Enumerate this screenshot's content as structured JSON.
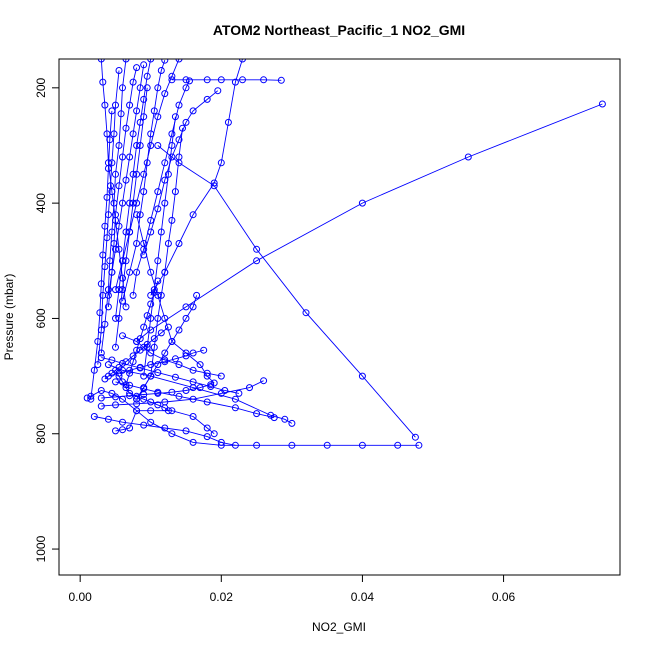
{
  "chart_data": {
    "type": "line",
    "title": "ATOM2 Northeast_Pacific_1 NO2_GMI",
    "xlabel": "NO2_GMI",
    "ylabel": "Pressure (mbar)",
    "xlim": [
      -0.003,
      0.0765
    ],
    "ylim": [
      1045,
      150
    ],
    "y_reversed": true,
    "x_ticks": [
      0.0,
      0.02,
      0.04,
      0.06
    ],
    "x_tick_labels": [
      "0.00",
      "0.02",
      "0.04",
      "0.06"
    ],
    "y_ticks": [
      200,
      400,
      600,
      800,
      1000
    ],
    "y_tick_labels": [
      "200",
      "400",
      "600",
      "800",
      "1000"
    ],
    "series_color": "#0000ff",
    "marker": "open-circle",
    "grid": false,
    "legend": "none",
    "series": [
      {
        "x": [
          0.048,
          0.045,
          0.04,
          0.035,
          0.03,
          0.025,
          0.02,
          0.016,
          0.013,
          0.01,
          0.008,
          0.006,
          0.0045,
          0.003,
          0.0015,
          0.001
        ],
        "y": [
          820,
          820,
          820,
          820,
          820,
          820,
          820,
          815,
          800,
          780,
          760,
          740,
          730,
          725,
          735,
          738
        ]
      },
      {
        "x": [
          0.074,
          0.055,
          0.04,
          0.025,
          0.015,
          0.01,
          0.008
        ],
        "y": [
          228,
          320,
          400,
          500,
          580,
          620,
          640
        ]
      },
      {
        "x": [
          0.0475,
          0.04,
          0.032,
          0.025,
          0.019,
          0.014,
          0.011
        ],
        "y": [
          806,
          700,
          590,
          480,
          370,
          330,
          300
        ]
      },
      {
        "x": [
          0.03,
          0.029,
          0.027,
          0.022,
          0.016,
          0.01,
          0.006,
          0.004
        ],
        "y": [
          782,
          775,
          768,
          740,
          720,
          700,
          690,
          680
        ]
      },
      {
        "x": [
          0.026,
          0.024,
          0.02,
          0.016,
          0.012,
          0.008,
          0.005,
          0.003
        ],
        "y": [
          708,
          720,
          730,
          740,
          745,
          748,
          750,
          752
        ]
      },
      {
        "x": [
          0.022,
          0.02,
          0.018,
          0.015,
          0.012,
          0.009,
          0.006,
          0.004,
          0.002
        ],
        "y": [
          820,
          815,
          805,
          795,
          790,
          785,
          780,
          775,
          770
        ]
      },
      {
        "x": [
          0.019,
          0.018,
          0.016,
          0.013,
          0.01,
          0.008,
          0.007,
          0.006,
          0.005
        ],
        "y": [
          800,
          790,
          770,
          760,
          760,
          760,
          790,
          793,
          795
        ]
      },
      {
        "x": [
          0.019,
          0.018,
          0.017,
          0.015,
          0.013,
          0.012,
          0.011,
          0.01,
          0.009,
          0.008
        ],
        "y": [
          712,
          700,
          680,
          660,
          640,
          600,
          560,
          520,
          470,
          420
        ]
      },
      {
        "x": [
          0.02,
          0.018,
          0.016,
          0.014,
          0.012,
          0.01,
          0.009,
          0.008,
          0.006
        ],
        "y": [
          700,
          695,
          690,
          680,
          672,
          660,
          650,
          640,
          630
        ]
      },
      {
        "x": [
          0.0285,
          0.026,
          0.023,
          0.02,
          0.018,
          0.015,
          0.013
        ],
        "y": [
          187,
          186,
          186,
          186,
          186,
          186,
          186
        ]
      },
      {
        "x": [
          0.023,
          0.022,
          0.021,
          0.02,
          0.019,
          0.016,
          0.014,
          0.012,
          0.01
        ],
        "y": [
          150,
          190,
          260,
          330,
          365,
          420,
          470,
          520,
          560
        ]
      },
      {
        "x": [
          0.0195,
          0.018,
          0.016,
          0.015,
          0.014,
          0.013,
          0.012,
          0.011,
          0.01,
          0.009
        ],
        "y": [
          205,
          220,
          240,
          260,
          290,
          320,
          360,
          410,
          450,
          490
        ]
      },
      {
        "x": [
          0.014,
          0.013,
          0.012,
          0.011,
          0.01,
          0.009,
          0.008,
          0.007,
          0.006,
          0.005
        ],
        "y": [
          150,
          180,
          210,
          250,
          300,
          350,
          400,
          450,
          500,
          550
        ]
      },
      {
        "x": [
          0.0155,
          0.015,
          0.014,
          0.013,
          0.012,
          0.011,
          0.01,
          0.009,
          0.008,
          0.0075
        ],
        "y": [
          188,
          200,
          230,
          280,
          330,
          380,
          430,
          480,
          520,
          560
        ]
      },
      {
        "x": [
          0.012,
          0.0115,
          0.011,
          0.0105,
          0.01,
          0.0095,
          0.009,
          0.0085,
          0.008,
          0.007,
          0.006
        ],
        "y": [
          152,
          170,
          200,
          240,
          280,
          330,
          380,
          420,
          470,
          520,
          570
        ]
      },
      {
        "x": [
          0.01,
          0.0095,
          0.009,
          0.0085,
          0.008,
          0.0075,
          0.007,
          0.0065,
          0.006,
          0.0055,
          0.005
        ],
        "y": [
          150,
          180,
          220,
          260,
          300,
          350,
          400,
          450,
          500,
          550,
          600
        ]
      },
      {
        "x": [
          0.009,
          0.0085,
          0.008,
          0.0075,
          0.007,
          0.0065,
          0.006,
          0.0055,
          0.005,
          0.0045,
          0.004
        ],
        "y": [
          160,
          200,
          240,
          280,
          320,
          360,
          400,
          440,
          480,
          520,
          560
        ]
      },
      {
        "x": [
          0.008,
          0.0075,
          0.007,
          0.0065,
          0.006,
          0.0055,
          0.005,
          0.0048,
          0.0045,
          0.004
        ],
        "y": [
          165,
          190,
          230,
          270,
          320,
          370,
          420,
          470,
          520,
          580
        ]
      },
      {
        "x": [
          0.0065,
          0.006,
          0.0058,
          0.0055,
          0.005,
          0.0048,
          0.0045,
          0.0042,
          0.004,
          0.0035,
          0.003
        ],
        "y": [
          150,
          200,
          245,
          300,
          350,
          400,
          450,
          500,
          550,
          610,
          660
        ]
      },
      {
        "x": [
          0.0055,
          0.005,
          0.0048,
          0.0045,
          0.0043,
          0.004,
          0.0038,
          0.0035,
          0.0032,
          0.003,
          0.0025
        ],
        "y": [
          170,
          230,
          280,
          330,
          370,
          420,
          460,
          510,
          560,
          620,
          680
        ]
      },
      {
        "x": [
          0.0045,
          0.0042,
          0.004,
          0.0038,
          0.0035,
          0.0032,
          0.003,
          0.0028,
          0.0025,
          0.002,
          0.0015
        ],
        "y": [
          240,
          290,
          340,
          390,
          440,
          490,
          540,
          590,
          640,
          690,
          740
        ]
      },
      {
        "x": [
          0.003,
          0.0032,
          0.0035,
          0.0038,
          0.004,
          0.0045,
          0.005,
          0.0055,
          0.006,
          0.0065
        ],
        "y": [
          150,
          190,
          230,
          280,
          330,
          380,
          430,
          480,
          530,
          580
        ]
      },
      {
        "x": [
          0.0095,
          0.009,
          0.0085,
          0.008,
          0.0075,
          0.007,
          0.0065,
          0.006,
          0.0055,
          0.005
        ],
        "y": [
          200,
          250,
          300,
          350,
          400,
          450,
          500,
          550,
          600,
          650
        ]
      },
      {
        "x": [
          0.0135,
          0.013,
          0.0125,
          0.012,
          0.0115,
          0.011,
          0.0105,
          0.01,
          0.0095,
          0.009
        ],
        "y": [
          250,
          300,
          350,
          400,
          450,
          500,
          550,
          600,
          650,
          700
        ]
      },
      {
        "x": [
          0.0145,
          0.014,
          0.0135,
          0.013,
          0.0125,
          0.012,
          0.0115,
          0.011,
          0.0105,
          0.01,
          0.008
        ],
        "y": [
          270,
          320,
          380,
          430,
          470,
          520,
          560,
          600,
          650,
          700,
          740
        ]
      },
      {
        "x": [
          0.0165,
          0.016,
          0.015,
          0.014,
          0.013,
          0.012,
          0.011,
          0.01,
          0.009,
          0.008
        ],
        "y": [
          560,
          580,
          600,
          620,
          640,
          660,
          680,
          700,
          720,
          740
        ]
      },
      {
        "x": [
          0.0125,
          0.012,
          0.011,
          0.01,
          0.009,
          0.008,
          0.007,
          0.0065,
          0.006,
          0.0055,
          0.005
        ],
        "y": [
          760,
          755,
          750,
          745,
          740,
          735,
          730,
          720,
          710,
          700,
          690
        ]
      },
      {
        "x": [
          0.0185,
          0.017,
          0.015,
          0.013,
          0.011,
          0.009,
          0.007,
          0.005,
          0.003
        ],
        "y": [
          715,
          720,
          725,
          728,
          730,
          732,
          734,
          736,
          738
        ]
      },
      {
        "x": [
          0.0275,
          0.025,
          0.022,
          0.018,
          0.014,
          0.011,
          0.009,
          0.007,
          0.005
        ],
        "y": [
          772,
          765,
          755,
          745,
          735,
          728,
          722,
          716,
          710
        ]
      },
      {
        "x": [
          0.0225,
          0.0205,
          0.0185,
          0.016,
          0.0135,
          0.011,
          0.0085,
          0.006,
          0.0045,
          0.003
        ],
        "y": [
          730,
          725,
          718,
          710,
          702,
          694,
          686,
          678,
          672,
          668
        ]
      },
      {
        "x": [
          0.0175,
          0.016,
          0.015,
          0.0135,
          0.012,
          0.01,
          0.0085,
          0.007,
          0.0055,
          0.004
        ],
        "y": [
          655,
          660,
          665,
          670,
          675,
          680,
          685,
          690,
          695,
          700
        ]
      },
      {
        "x": [
          0.0125,
          0.0115,
          0.0105,
          0.0095,
          0.0085,
          0.0075,
          0.0065,
          0.0055,
          0.0045,
          0.0035
        ],
        "y": [
          615,
          625,
          635,
          645,
          655,
          665,
          675,
          685,
          695,
          705
        ]
      },
      {
        "x": [
          0.011,
          0.0105,
          0.01,
          0.0095,
          0.009,
          0.0085,
          0.008,
          0.0075,
          0.007,
          0.0065
        ],
        "y": [
          535,
          555,
          575,
          595,
          615,
          635,
          655,
          675,
          695,
          715
        ]
      }
    ]
  }
}
